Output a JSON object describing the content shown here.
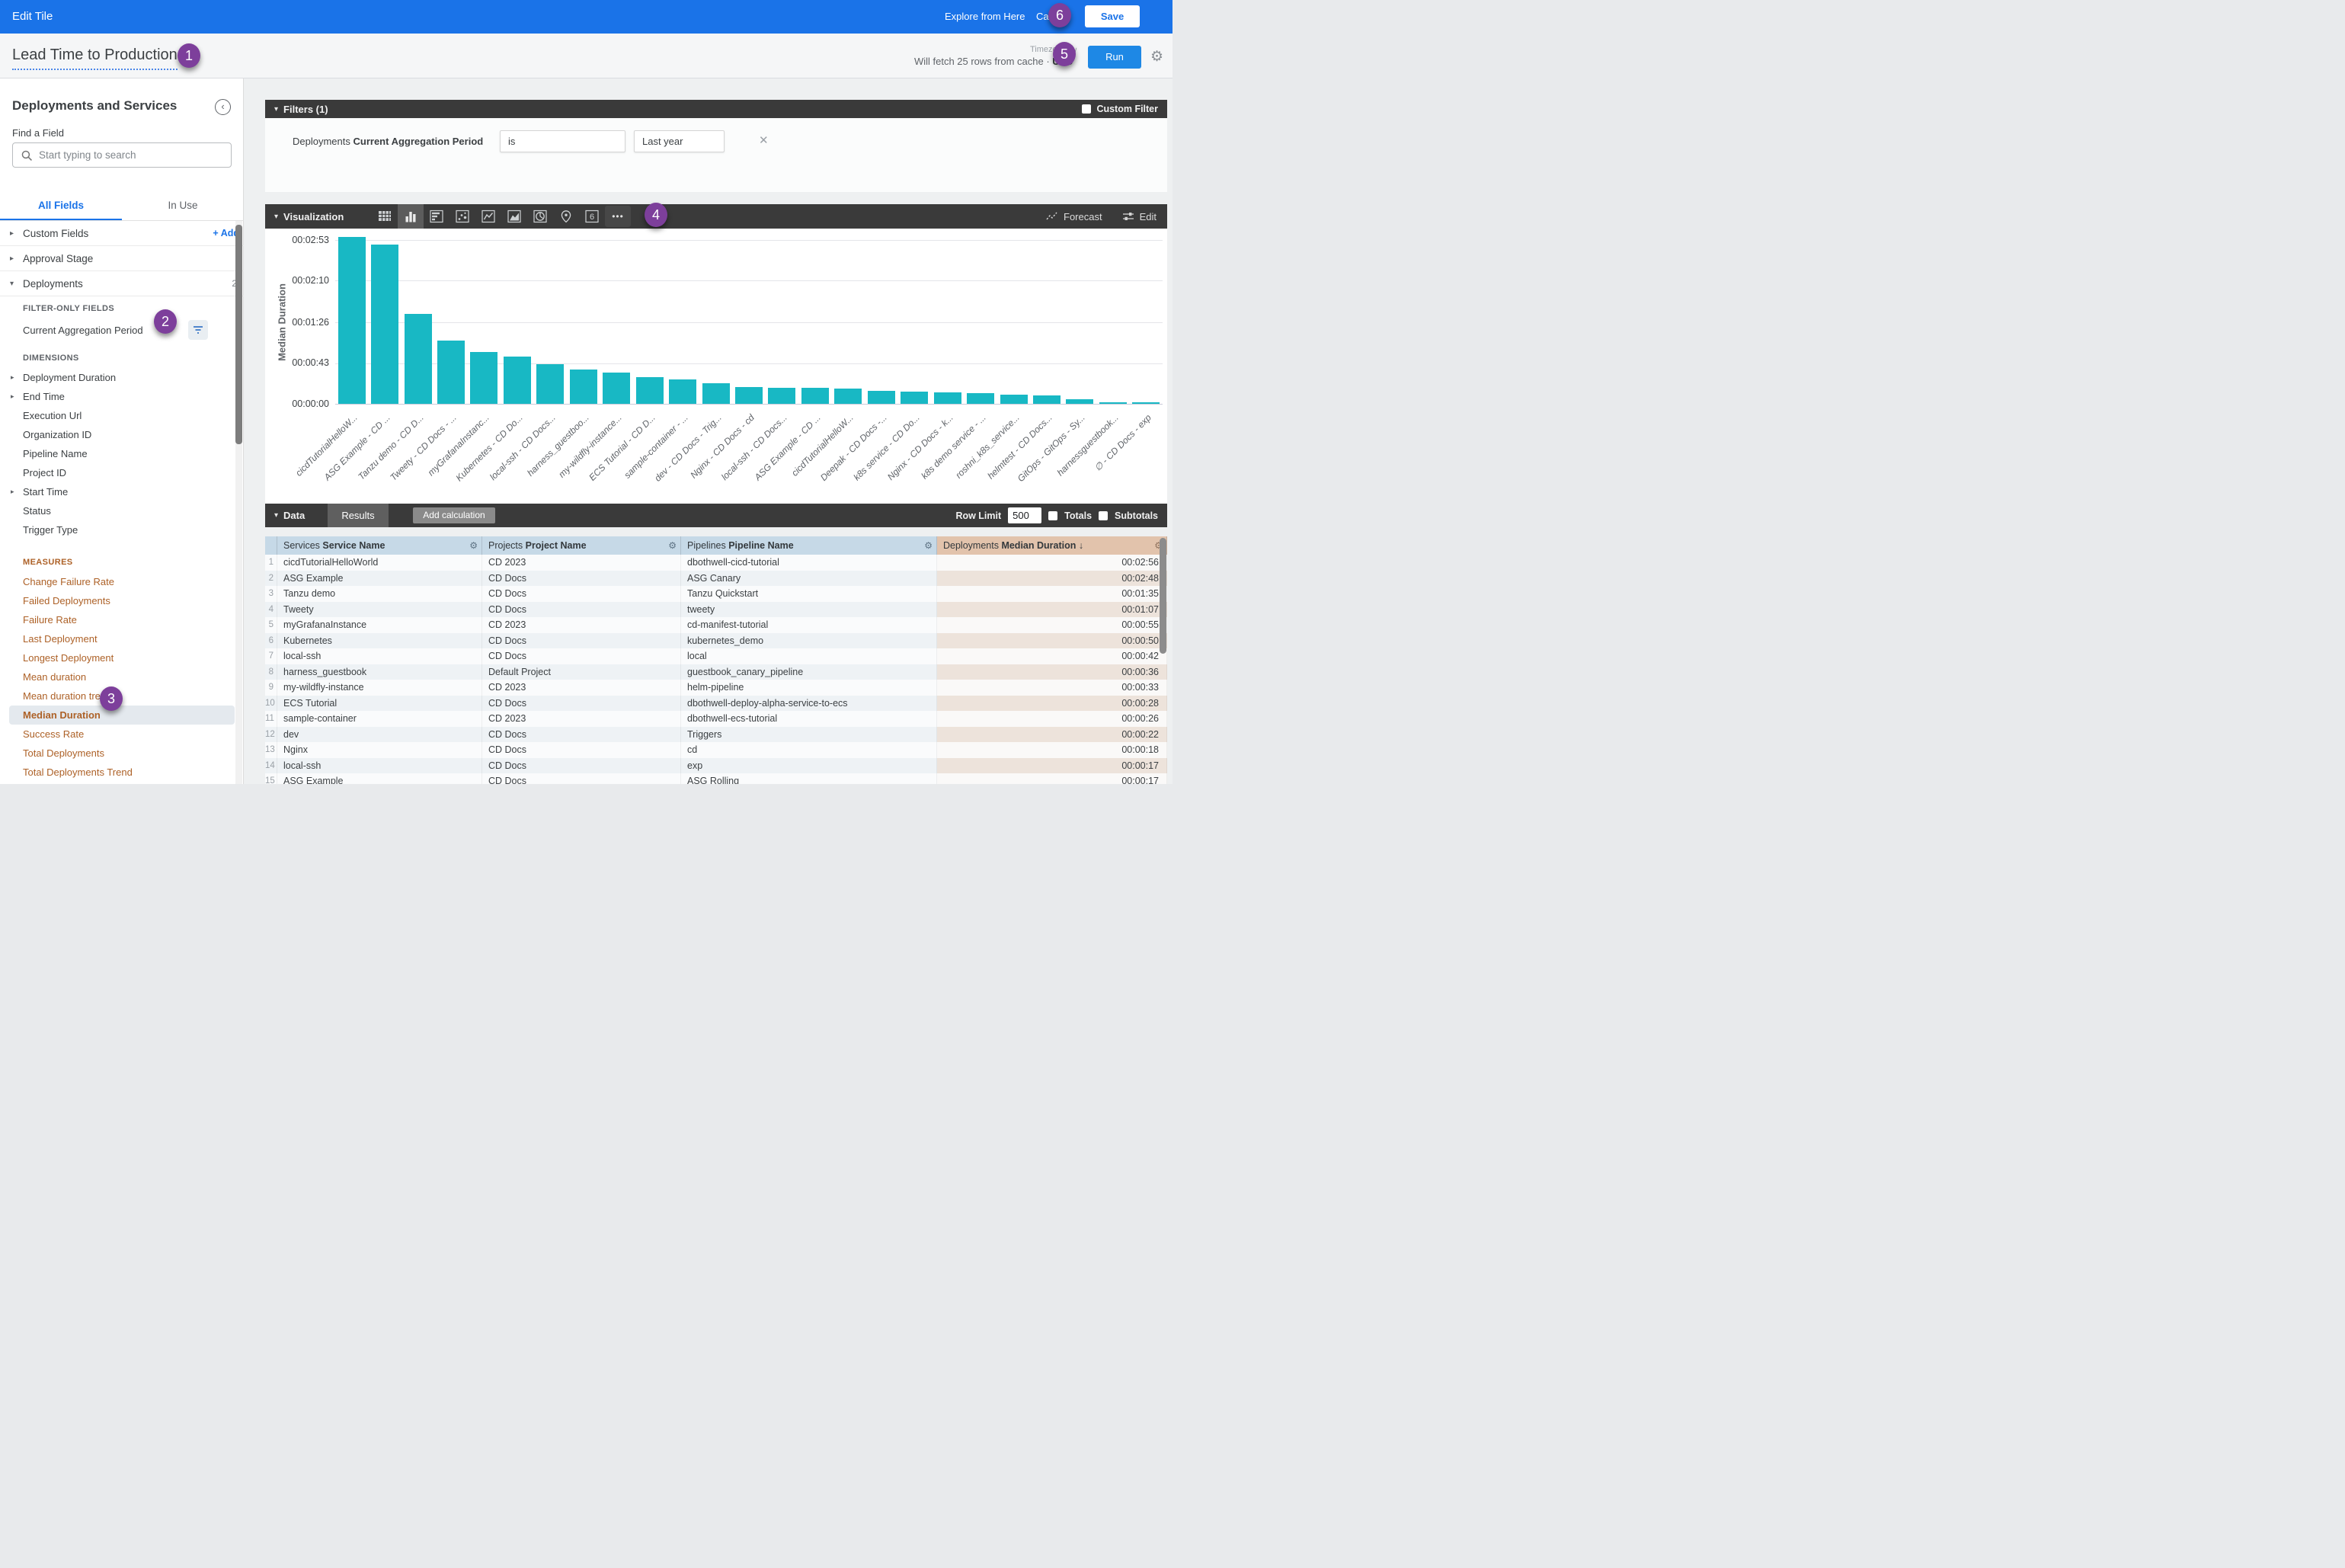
{
  "topbar": {
    "title": "Edit Tile",
    "explore_link": "Explore from Here",
    "cancel_label": "Cancel",
    "save_label": "Save"
  },
  "titlebar": {
    "tile_title": "Lead Time to Production",
    "fetch_prefix": "Will fetch 25 rows from cache ·",
    "fetch_timezone": "UTC",
    "timezone_label": "Timezone",
    "run_label": "Run"
  },
  "sidebar": {
    "panel_title": "Deployments and Services",
    "find_label": "Find a Field",
    "search_placeholder": "Start typing to search",
    "tabs": [
      {
        "label": "All Fields"
      },
      {
        "label": "In Use"
      }
    ],
    "groups": {
      "custom_fields": {
        "label": "Custom Fields",
        "add_label": "+ Add"
      },
      "approval_stage": {
        "label": "Approval Stage"
      },
      "deployments": {
        "label": "Deployments",
        "count": "2"
      }
    },
    "deployments_sections": [
      {
        "kind": "filter",
        "header": "FILTER-ONLY FIELDS",
        "items": [
          {
            "label": "Current Aggregation Period",
            "filter_button": true
          }
        ]
      },
      {
        "kind": "dimension",
        "header": "DIMENSIONS",
        "items": [
          {
            "label": "Deployment Duration",
            "caret": true
          },
          {
            "label": "End Time",
            "caret": true
          },
          {
            "label": "Execution Url"
          },
          {
            "label": "Organization ID"
          },
          {
            "label": "Pipeline Name"
          },
          {
            "label": "Project ID"
          },
          {
            "label": "Start Time",
            "caret": true
          },
          {
            "label": "Status"
          },
          {
            "label": "Trigger Type"
          }
        ]
      },
      {
        "kind": "measure",
        "header": "MEASURES",
        "items": [
          {
            "label": "Change Failure Rate"
          },
          {
            "label": "Failed Deployments"
          },
          {
            "label": "Failure Rate"
          },
          {
            "label": "Last Deployment"
          },
          {
            "label": "Longest Deployment"
          },
          {
            "label": "Mean duration"
          },
          {
            "label": "Mean duration trend"
          },
          {
            "label": "Median Duration",
            "selected": true
          },
          {
            "label": "Success Rate"
          },
          {
            "label": "Total Deployments"
          },
          {
            "label": "Total Deployments Trend"
          }
        ]
      }
    ]
  },
  "filters": {
    "header": "Filters (1)",
    "custom_filter_label": "Custom Filter",
    "row": {
      "entity": "Deployments",
      "field": "Current Aggregation Period",
      "operator": "is",
      "value": "Last year"
    }
  },
  "viz": {
    "header": "Visualization",
    "forecast_label": "Forecast",
    "edit_label": "Edit",
    "selected_icon": "column-chart-icon",
    "icons": [
      "table-chart-icon",
      "column-chart-icon",
      "bar-chart-icon",
      "scatter-chart-icon",
      "line-chart-icon",
      "area-chart-icon",
      "pie-chart-icon",
      "map-chart-icon",
      "single-value-icon",
      "more-vis-icon"
    ]
  },
  "chart_data": {
    "type": "bar",
    "title": "",
    "xlabel": "",
    "ylabel": "Median Duration",
    "legend_position": "none",
    "grid": true,
    "bar_color": "#18b8c4",
    "y_ticks": [
      "00:00:00",
      "00:00:43",
      "00:01:26",
      "00:02:10",
      "00:02:53"
    ],
    "y_tick_seconds": [
      0,
      43,
      86,
      130,
      173
    ],
    "categories": [
      "cicdTutorialHelloW...",
      "ASG Example - CD ...",
      "Tanzu demo - CD D...",
      "Tweety - CD Docs - ...",
      "myGrafanaInstanc...",
      "Kubernetes - CD Do...",
      "local-ssh - CD Docs...",
      "harness_guestboo...",
      "my-wildfly-instance...",
      "ECS Tutorial - CD D...",
      "sample-container - ...",
      "dev - CD Docs - Trig...",
      "Nginx - CD Docs - cd",
      "local-ssh - CD Docs...",
      "ASG Example - CD ...",
      "cicdTutorialHelloW...",
      "Deepak - CD Docs -...",
      "k8s service - CD Do...",
      "Nginx - CD Docs - k...",
      "k8s demo service - ...",
      "roshni_k8s_service...",
      "helmtest - CD Docs...",
      "GitOps - GitOps - Sy...",
      "harnessguestbook...",
      "∅ - CD Docs - exp"
    ],
    "values_seconds": [
      176,
      168,
      95,
      67,
      55,
      50,
      42,
      36,
      33,
      28,
      26,
      22,
      18,
      17,
      17,
      16,
      14,
      13,
      12,
      11,
      10,
      9,
      5,
      2,
      2
    ],
    "value_labels": [
      "00:02:56",
      "00:02:48",
      "00:01:35",
      "00:01:07",
      "00:00:55",
      "00:00:50",
      "00:00:42",
      "00:00:36",
      "00:00:33",
      "00:00:28",
      "00:00:26",
      "00:00:22",
      "00:00:18",
      "00:00:17",
      "00:00:17",
      "00:00:16",
      "00:00:14",
      "00:00:13",
      "00:00:12",
      "00:00:11",
      "00:00:10",
      "00:00:09",
      "00:00:05",
      "00:00:02",
      "00:00:02"
    ]
  },
  "data_section": {
    "header": "Data",
    "results_tab": "Results",
    "add_calc_label": "Add calculation",
    "row_limit_label": "Row Limit",
    "row_limit_value": "500",
    "totals_label": "Totals",
    "subtotals_label": "Subtotals"
  },
  "table": {
    "headers": [
      {
        "entity": "Services",
        "field": "Service Name"
      },
      {
        "entity": "Projects",
        "field": "Project Name"
      },
      {
        "entity": "Pipelines",
        "field": "Pipeline Name"
      },
      {
        "entity": "Deployments",
        "field": "Median Duration",
        "sort": "↓"
      }
    ],
    "rows": [
      [
        "1",
        "cicdTutorialHelloWorld",
        "CD 2023",
        "dbothwell-cicd-tutorial",
        "00:02:56"
      ],
      [
        "2",
        "ASG Example",
        "CD Docs",
        "ASG Canary",
        "00:02:48"
      ],
      [
        "3",
        "Tanzu demo",
        "CD Docs",
        "Tanzu Quickstart",
        "00:01:35"
      ],
      [
        "4",
        "Tweety",
        "CD Docs",
        "tweety",
        "00:01:07"
      ],
      [
        "5",
        "myGrafanaInstance",
        "CD 2023",
        "cd-manifest-tutorial",
        "00:00:55"
      ],
      [
        "6",
        "Kubernetes",
        "CD Docs",
        "kubernetes_demo",
        "00:00:50"
      ],
      [
        "7",
        "local-ssh",
        "CD Docs",
        "local",
        "00:00:42"
      ],
      [
        "8",
        "harness_guestbook",
        "Default Project",
        "guestbook_canary_pipeline",
        "00:00:36"
      ],
      [
        "9",
        "my-wildfly-instance",
        "CD 2023",
        "helm-pipeline",
        "00:00:33"
      ],
      [
        "10",
        "ECS Tutorial",
        "CD Docs",
        "dbothwell-deploy-alpha-service-to-ecs",
        "00:00:28"
      ],
      [
        "11",
        "sample-container",
        "CD 2023",
        "dbothwell-ecs-tutorial",
        "00:00:26"
      ],
      [
        "12",
        "dev",
        "CD Docs",
        "Triggers",
        "00:00:22"
      ],
      [
        "13",
        "Nginx",
        "CD Docs",
        "cd",
        "00:00:18"
      ],
      [
        "14",
        "local-ssh",
        "CD Docs",
        "exp",
        "00:00:17"
      ],
      [
        "15",
        "ASG Example",
        "CD Docs",
        "ASG Rolling",
        "00:00:17"
      ]
    ]
  },
  "annotations": [
    "1",
    "2",
    "3",
    "4",
    "5",
    "6"
  ],
  "colors": {
    "topbar_blue": "#1a73e8",
    "run_blue": "#1e88e5",
    "bar_teal": "#18b8c4",
    "measure_orange": "#ad6127",
    "badge_purple": "#7d3f9b",
    "panel_header_dark": "#3a3a3a",
    "dim_header_bg": "#c6d9e7",
    "measure_header_bg": "#e2c3ac",
    "selected_field_bg": "#e4e9ee"
  }
}
